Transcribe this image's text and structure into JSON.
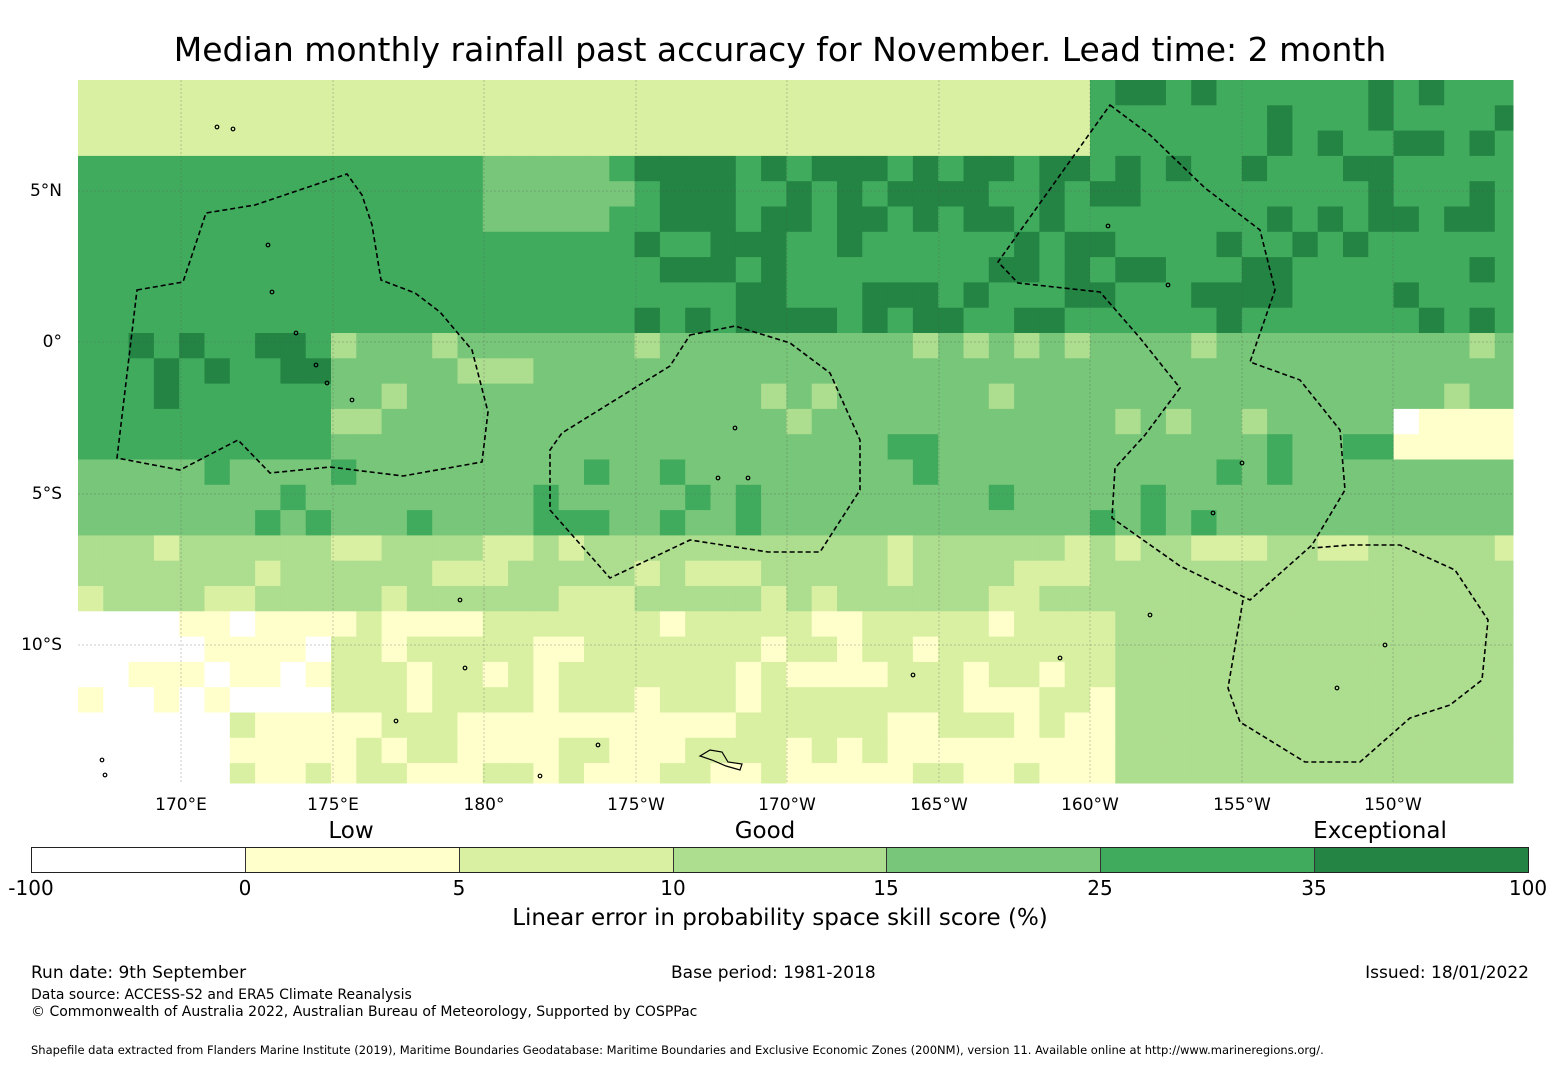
{
  "title": "Median monthly rainfall past accuracy for November. Lead time: 2 month",
  "map": {
    "lat_labels": [
      "5°N",
      "0°",
      "5°S",
      "10°S"
    ],
    "lon_labels": [
      "170°E",
      "175°E",
      "180°",
      "175°W",
      "170°W",
      "165°W",
      "160°W",
      "155°W",
      "150°W"
    ],
    "extent": {
      "lon_min": 166.6,
      "lon_max": 213.9,
      "lat_min": -14.5,
      "lat_max": 8.7
    }
  },
  "legend": {
    "categories": [
      "Low",
      "Good",
      "Exceptional"
    ],
    "ticks": [
      "-100",
      "0",
      "5",
      "10",
      "15",
      "25",
      "35",
      "100"
    ],
    "colors": [
      "#ffffff",
      "#ffffcc",
      "#d9f0a3",
      "#addd8e",
      "#78c679",
      "#41ab5d",
      "#238443"
    ],
    "label": "Linear error in probability space skill score (%)"
  },
  "footer": {
    "run_date": "Run date: 9th September",
    "base_period": "Base period: 1981-2018",
    "issued": "Issued: 18/01/2022",
    "data_source": "Data source: ACCESS-S2 and ERA5 Climate Reanalysis",
    "copyright": "© Commonwealth of Australia 2022, Australian Bureau of Meteorology, Supported by COSPPac",
    "shapefile": "Shapefile data extracted from Flanders Marine Institute (2019), Maritime Boundaries Geodatabase: Maritime Boundaries and Exclusive Economic Zones (200NM), version 11. Available online at http://www.marineregions.org/."
  }
}
